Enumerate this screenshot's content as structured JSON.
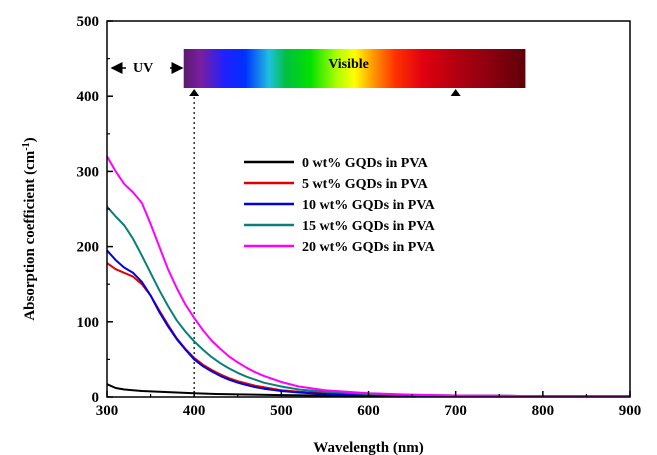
{
  "chart_data": {
    "type": "line",
    "xlabel": "Wavelength (nm)",
    "ylabel_main": "Absorption coefficient (cm",
    "ylabel_sup": "-1",
    "ylabel_tail": ")",
    "xlim": [
      300,
      900
    ],
    "ylim": [
      0,
      500
    ],
    "xticks": [
      300,
      400,
      500,
      600,
      700,
      800,
      900
    ],
    "yticks": [
      0,
      100,
      200,
      300,
      400,
      500
    ],
    "legend_position": "center-right",
    "annotations": {
      "uv_label": "UV",
      "visible_label": "Visible",
      "visible_band_x": [
        388,
        780
      ],
      "band_markers_x": [
        400,
        700
      ],
      "dotted_line_x": 400
    },
    "series": [
      {
        "name": "0 wt% GQDs in PVA",
        "color": "#000000",
        "x": [
          300,
          310,
          320,
          340,
          360,
          380,
          400,
          425,
          450,
          500,
          550,
          600,
          700,
          800,
          900
        ],
        "y": [
          17,
          12,
          10,
          8,
          7,
          6,
          5,
          4,
          3.5,
          2.5,
          2,
          1.5,
          1,
          1,
          1
        ]
      },
      {
        "name": "5 wt% GQDs in PVA",
        "color": "#e00000",
        "x": [
          300,
          310,
          320,
          330,
          340,
          350,
          360,
          370,
          380,
          390,
          400,
          410,
          420,
          430,
          440,
          450,
          460,
          470,
          480,
          500,
          520,
          550,
          600,
          650,
          700,
          800,
          900
        ],
        "y": [
          178,
          170,
          165,
          160,
          150,
          135,
          115,
          96,
          78,
          64,
          52,
          43,
          36,
          30,
          25,
          21,
          18,
          15,
          13,
          9,
          7,
          5,
          3,
          2,
          2,
          1,
          1
        ]
      },
      {
        "name": "10 wt% GQDs in PVA",
        "color": "#0000e0",
        "x": [
          300,
          310,
          320,
          330,
          340,
          350,
          360,
          370,
          380,
          390,
          400,
          410,
          420,
          430,
          440,
          450,
          460,
          470,
          480,
          500,
          520,
          550,
          600,
          650,
          700,
          800,
          900
        ],
        "y": [
          195,
          182,
          172,
          165,
          153,
          135,
          113,
          94,
          77,
          63,
          50,
          41,
          34,
          28,
          23,
          19,
          16,
          13,
          11,
          8,
          6,
          4,
          3,
          2,
          2,
          1,
          1
        ]
      },
      {
        "name": "15 wt% GQDs in PVA",
        "color": "#0a7e7a",
        "x": [
          300,
          310,
          320,
          330,
          340,
          350,
          360,
          370,
          380,
          390,
          400,
          410,
          420,
          430,
          440,
          450,
          460,
          470,
          480,
          500,
          520,
          550,
          600,
          650,
          700,
          800,
          900
        ],
        "y": [
          253,
          240,
          228,
          210,
          188,
          165,
          142,
          121,
          102,
          87,
          74,
          63,
          53,
          45,
          38,
          32,
          27,
          23,
          19,
          14,
          10,
          7,
          4,
          3,
          2,
          1,
          1
        ]
      },
      {
        "name": "20 wt% GQDs in PVA",
        "color": "#ff00ff",
        "x": [
          300,
          310,
          320,
          330,
          340,
          350,
          360,
          370,
          380,
          390,
          400,
          410,
          420,
          430,
          440,
          450,
          460,
          470,
          480,
          500,
          520,
          550,
          600,
          650,
          700,
          800,
          900
        ],
        "y": [
          320,
          300,
          283,
          272,
          258,
          230,
          200,
          170,
          145,
          123,
          105,
          89,
          75,
          64,
          54,
          46,
          39,
          33,
          28,
          20,
          14,
          9,
          5,
          3,
          2,
          1,
          1
        ]
      }
    ]
  }
}
